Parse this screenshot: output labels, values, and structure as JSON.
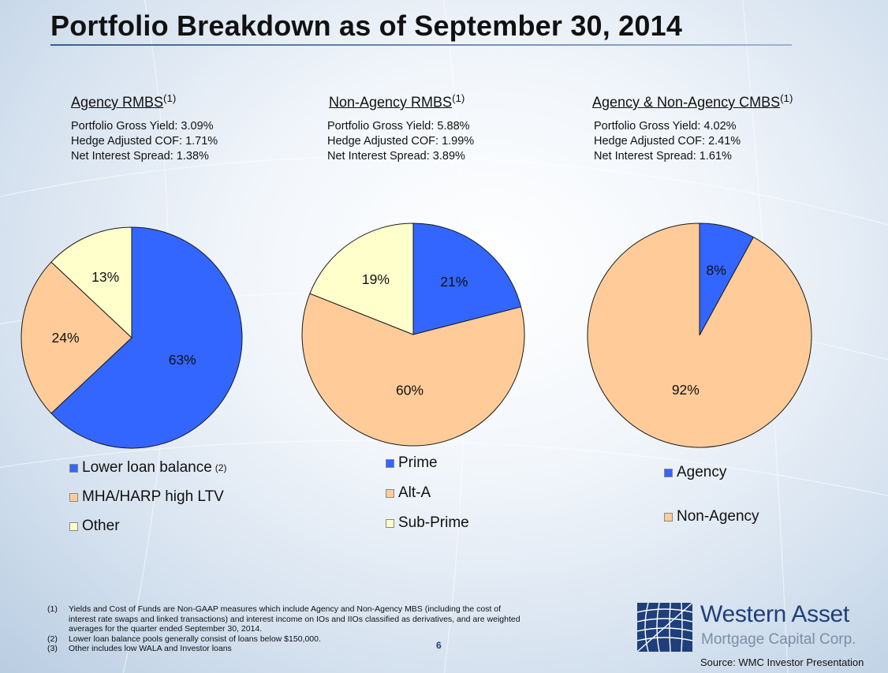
{
  "title": "Portfolio Breakdown as of September 30, 2014",
  "colors": {
    "blue": "#3366ff",
    "peach": "#ffcc99",
    "cream": "#ffffcc",
    "logo_blue": "#1f3f7a"
  },
  "panels": [
    {
      "heading": "Agency RMBS",
      "heading_sup": "(1)",
      "stats": [
        "Portfolio Gross Yield: 3.09%",
        "Hedge Adjusted COF: 1.71%",
        "Net Interest Spread: 1.38%"
      ],
      "legend": [
        {
          "label": "Lower loan balance",
          "sup": "(2)"
        },
        {
          "label": "MHA/HARP high LTV"
        },
        {
          "label": "Other"
        }
      ]
    },
    {
      "heading": "Non-Agency RMBS",
      "heading_sup": "(1)",
      "stats": [
        "Portfolio Gross Yield: 5.88%",
        "Hedge Adjusted COF: 1.99%",
        "Net Interest Spread: 3.89%"
      ],
      "legend": [
        {
          "label": "Prime"
        },
        {
          "label": "Alt-A"
        },
        {
          "label": "Sub-Prime"
        }
      ]
    },
    {
      "heading": "Agency & Non-Agency CMBS",
      "heading_sup": "(1)",
      "stats": [
        "Portfolio Gross Yield: 4.02%",
        "Hedge Adjusted COF: 2.41%",
        "Net Interest Spread: 1.61%"
      ],
      "legend": [
        {
          "label": "Agency"
        },
        {
          "label": "Non-Agency"
        }
      ]
    }
  ],
  "chart_data": [
    {
      "type": "pie",
      "title": "Agency RMBS",
      "categories": [
        "Lower loan balance",
        "MHA/HARP high LTV",
        "Other"
      ],
      "values": [
        63,
        24,
        13
      ],
      "labels": [
        "63%",
        "24%",
        "13%"
      ],
      "colors": [
        "#3366ff",
        "#ffcc99",
        "#ffffcc"
      ],
      "legend_position": "bottom"
    },
    {
      "type": "pie",
      "title": "Non-Agency RMBS",
      "categories": [
        "Prime",
        "Alt-A",
        "Sub-Prime"
      ],
      "values": [
        21,
        60,
        19
      ],
      "labels": [
        "21%",
        "60%",
        "19%"
      ],
      "colors": [
        "#3366ff",
        "#ffcc99",
        "#ffffcc"
      ],
      "legend_position": "bottom"
    },
    {
      "type": "pie",
      "title": "Agency & Non-Agency CMBS",
      "categories": [
        "Agency",
        "Non-Agency"
      ],
      "values": [
        8,
        92
      ],
      "labels": [
        "8%",
        "92%"
      ],
      "colors": [
        "#3366ff",
        "#ffcc99"
      ],
      "legend_position": "bottom"
    }
  ],
  "footnotes": [
    {
      "num": "(1)",
      "text": "Yields and Cost of Funds are Non-GAAP measures which include Agency and Non-Agency MBS (including the cost of interest rate swaps and linked transactions) and interest income on IOs and IIOs classified as derivatives, and are weighted averages for the quarter ended September 30, 2014."
    },
    {
      "num": "(2)",
      "text": "Lower loan balance pools generally consist of loans below $150,000."
    },
    {
      "num": "(3)",
      "text": "Other includes low WALA  and Investor loans"
    }
  ],
  "page_number": "6",
  "logo": {
    "name": "Western Asset",
    "subtitle": "Mortgage Capital Corp."
  },
  "source": "Source: WMC Investor Presentation"
}
